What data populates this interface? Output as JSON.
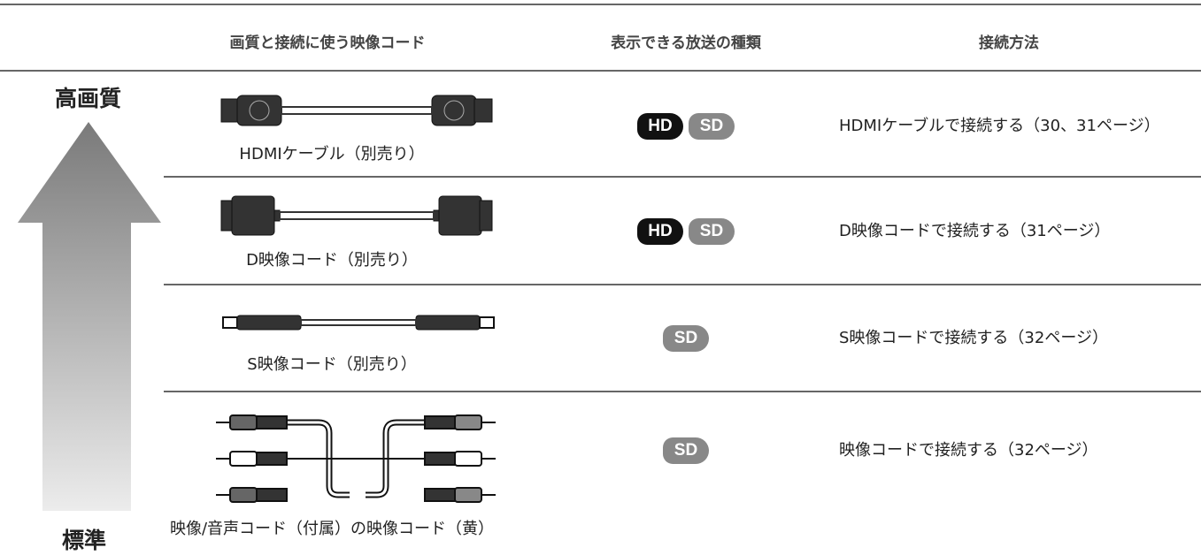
{
  "header": {
    "columns": [
      "画質と接続に使う映像コード",
      "表示できる放送の種類",
      "接続方法"
    ]
  },
  "quality": {
    "top": "高画質",
    "bottom": "標準"
  },
  "rows": [
    {
      "cable": "HDMIケーブル（別売り）",
      "broadcasts": [
        "HD",
        "SD"
      ],
      "method": "HDMIケーブルで接続する（30、31ページ）"
    },
    {
      "cable": "D映像コード（別売り）",
      "broadcasts": [
        "HD",
        "SD"
      ],
      "method": "D映像コードで接続する（31ページ）"
    },
    {
      "cable": "S映像コード（別売り）",
      "broadcasts": [
        "SD"
      ],
      "method": "S映像コードで接続する（32ページ）"
    },
    {
      "cable": "映像/音声コード（付属）の映像コード（黄）",
      "broadcasts": [
        "SD"
      ],
      "method": "映像コードで接続する（32ページ）"
    }
  ]
}
